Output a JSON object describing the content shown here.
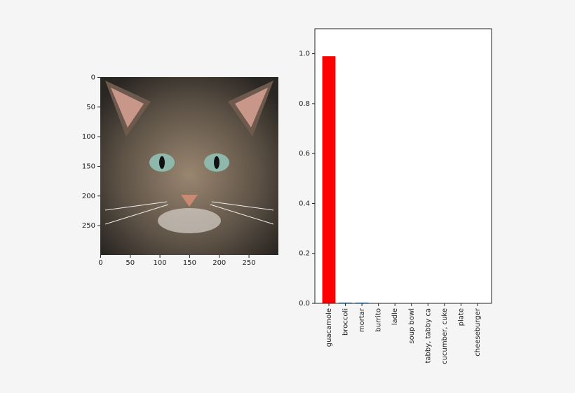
{
  "chart_data": [
    {
      "type": "image",
      "xlim": [
        -0.5,
        299.5
      ],
      "ylim": [
        299.5,
        -0.5
      ],
      "xticks": [
        0,
        50,
        100,
        150,
        200,
        250
      ],
      "yticks": [
        0,
        50,
        100,
        150,
        200,
        250
      ]
    },
    {
      "type": "bar",
      "categories": [
        "guacamole",
        "broccoli",
        "mortar",
        "burrito",
        "ladle",
        "soup bowl",
        "tabby, tabby ca",
        "cucumber, cuke",
        "plate",
        "cheeseburger"
      ],
      "values": [
        0.99,
        0.003,
        0.003,
        0.001,
        0.001,
        0.0005,
        0.0005,
        0.0005,
        0.0005,
        0.0005
      ],
      "colors": [
        "#ff0000",
        "#1f77b4",
        "#1f77b4",
        "#1f77b4",
        "#1f77b4",
        "#1f77b4",
        "#1f77b4",
        "#1f77b4",
        "#1f77b4",
        "#1f77b4"
      ],
      "ylim": [
        0,
        1.1
      ],
      "yticks": [
        {
          "value": 0,
          "label": "0.0"
        },
        0.2,
        0.4,
        0.6,
        0.8,
        {
          "value": 1,
          "label": "1.0"
        }
      ]
    }
  ]
}
